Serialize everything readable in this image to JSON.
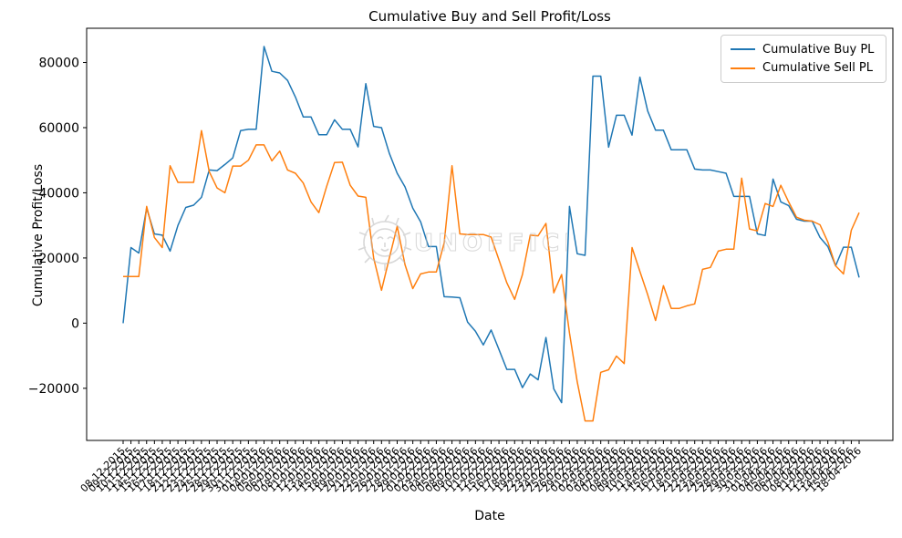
{
  "title": "Cumulative Buy and Sell Profit/Loss",
  "xlabel": "Date",
  "ylabel": "Cumulative Profit/Loss",
  "watermark": {
    "text": "UNOFFICED",
    "icon": "lion-crest-icon"
  },
  "legend": [
    {
      "label": "Cumulative Buy PL",
      "color": "#1f77b4"
    },
    {
      "label": "Cumulative Sell PL",
      "color": "#ff7f0e"
    }
  ],
  "chart_data": {
    "type": "line",
    "title": "Cumulative Buy and Sell Profit/Loss",
    "xlabel": "Date",
    "ylabel": "Cumulative Profit/Loss",
    "grid": false,
    "legend_position": "upper right",
    "ylim": [
      -36000,
      90500
    ],
    "ytick_values": [
      -20000,
      0,
      20000,
      40000,
      60000,
      80000
    ],
    "ytick_labels": [
      "−20000",
      "0",
      "20000",
      "40000",
      "60000",
      "80000"
    ],
    "x": [
      "08-12-2015",
      "09-12-2015",
      "10-12-2015",
      "11-12-2015",
      "14-12-2015",
      "15-12-2015",
      "16-12-2015",
      "17-12-2015",
      "18-12-2015",
      "21-12-2015",
      "22-12-2015",
      "23-12-2015",
      "24-12-2015",
      "25-12-2015",
      "28-12-2015",
      "29-12-2015",
      "30-12-2015",
      "31-12-2015",
      "01-01-2016",
      "04-01-2016",
      "05-01-2016",
      "06-01-2016",
      "07-01-2016",
      "08-01-2016",
      "11-01-2016",
      "12-01-2016",
      "13-01-2016",
      "14-01-2016",
      "15-01-2016",
      "18-01-2016",
      "19-01-2016",
      "20-01-2016",
      "21-01-2016",
      "22-01-2016",
      "25-01-2016",
      "26-01-2016",
      "27-01-2016",
      "28-01-2016",
      "29-01-2016",
      "01-02-2016",
      "02-02-2016",
      "03-02-2016",
      "04-02-2016",
      "05-02-2016",
      "08-02-2016",
      "09-02-2016",
      "10-02-2016",
      "11-02-2016",
      "12-02-2016",
      "15-02-2016",
      "16-02-2016",
      "17-02-2016",
      "18-02-2016",
      "19-02-2016",
      "22-02-2016",
      "23-02-2016",
      "24-02-2016",
      "25-02-2016",
      "26-02-2016",
      "29-02-2016",
      "01-03-2016",
      "02-03-2016",
      "03-03-2016",
      "04-03-2016",
      "07-03-2016",
      "08-03-2016",
      "09-03-2016",
      "10-03-2016",
      "11-03-2016",
      "14-03-2016",
      "15-03-2016",
      "16-03-2016",
      "17-03-2016",
      "18-03-2016",
      "21-03-2016",
      "22-03-2016",
      "23-03-2016",
      "24-03-2016",
      "25-03-2016",
      "28-03-2016",
      "29-03-2016",
      "30-03-2016",
      "31-03-2016",
      "01-04-2016",
      "04-04-2016",
      "05-04-2016",
      "06-04-2016",
      "07-04-2016",
      "08-04-2016",
      "11-04-2016",
      "12-04-2016",
      "13-04-2016",
      "14-04-2016",
      "15-04-2016",
      "18-04-2016"
    ],
    "series": [
      {
        "name": "Cumulative Buy PL",
        "color": "#1f77b4",
        "values": [
          0,
          23200,
          21500,
          35300,
          27400,
          27000,
          22100,
          30000,
          35500,
          36200,
          38600,
          47000,
          46800,
          48700,
          50700,
          59100,
          59500,
          59500,
          84900,
          77300,
          76800,
          74500,
          69400,
          63300,
          63300,
          57800,
          57800,
          62400,
          59500,
          59500,
          54100,
          73500,
          60400,
          60000,
          52100,
          46000,
          41800,
          35300,
          31100,
          23500,
          23500,
          8100,
          8000,
          7800,
          300,
          -2500,
          -6700,
          -2100,
          -8100,
          -14200,
          -14200,
          -19800,
          -15600,
          -17400,
          -4400,
          -20200,
          -24400,
          35800,
          21300,
          20800,
          75800,
          75800,
          54000,
          63800,
          63800,
          57700,
          75500,
          65100,
          59200,
          59200,
          53200,
          53200,
          53200,
          47300,
          47000,
          47000,
          46500,
          46000,
          38900,
          38900,
          38900,
          27400,
          26900,
          44200,
          37200,
          36100,
          31900,
          31300,
          31300,
          26300,
          23500,
          17600,
          23300,
          23300,
          14000
        ]
      },
      {
        "name": "Cumulative Sell PL",
        "color": "#ff7f0e",
        "values": [
          14300,
          14300,
          14300,
          35800,
          26300,
          23200,
          48300,
          43200,
          43200,
          43200,
          59100,
          46500,
          41500,
          40000,
          48200,
          48200,
          50000,
          54700,
          54700,
          49800,
          52800,
          47000,
          46000,
          43000,
          37200,
          33900,
          42000,
          49300,
          49400,
          42300,
          39000,
          38600,
          20000,
          10100,
          20000,
          29700,
          17900,
          10600,
          15100,
          15700,
          15700,
          24600,
          48300,
          27400,
          27200,
          27200,
          27200,
          26400,
          19400,
          12400,
          7300,
          14900,
          27000,
          26800,
          30600,
          9300,
          14900,
          -3000,
          -18000,
          -30000,
          -30000,
          -15100,
          -14300,
          -10100,
          -12400,
          23200,
          15900,
          8700,
          800,
          11500,
          4500,
          4500,
          5300,
          5900,
          16500,
          17100,
          22100,
          22700,
          22700,
          44500,
          28900,
          28300,
          36700,
          35800,
          42300,
          37200,
          32500,
          31600,
          31300,
          30200,
          24900,
          17600,
          15100,
          28500,
          33900
        ]
      }
    ]
  }
}
